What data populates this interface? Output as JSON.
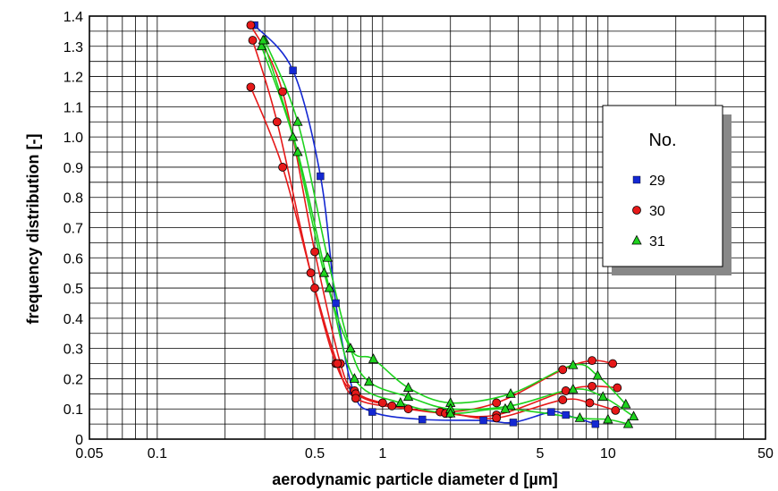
{
  "chart_data": {
    "type": "scatter",
    "xlabel": "aerodynamic particle diameter d [µm]",
    "ylabel": "frequency distribution [-]",
    "xscale": "log",
    "xlim": [
      0.05,
      50
    ],
    "ylim": [
      0,
      1.4
    ],
    "xticks": [
      {
        "v": 0.05,
        "label": "0.05"
      },
      {
        "v": 0.1,
        "label": "0.1"
      },
      {
        "v": 0.5,
        "label": "0.5"
      },
      {
        "v": 1,
        "label": "1"
      },
      {
        "v": 5,
        "label": "5"
      },
      {
        "v": 10,
        "label": "10"
      },
      {
        "v": 50,
        "label": "50"
      }
    ],
    "yticks": [
      {
        "v": 0,
        "label": "0"
      },
      {
        "v": 0.1,
        "label": "0.1"
      },
      {
        "v": 0.2,
        "label": "0.2"
      },
      {
        "v": 0.3,
        "label": "0.3"
      },
      {
        "v": 0.4,
        "label": "0.4"
      },
      {
        "v": 0.5,
        "label": "0.5"
      },
      {
        "v": 0.6,
        "label": "0.6"
      },
      {
        "v": 0.7,
        "label": "0.7"
      },
      {
        "v": 0.8,
        "label": "0.8"
      },
      {
        "v": 0.9,
        "label": "0.9"
      },
      {
        "v": 1.0,
        "label": "1.0"
      },
      {
        "v": 1.1,
        "label": "1.1"
      },
      {
        "v": 1.2,
        "label": "1.2"
      },
      {
        "v": 1.3,
        "label": "1.3"
      },
      {
        "v": 1.4,
        "label": "1.4"
      }
    ],
    "grid": true,
    "legend": {
      "title": "No.",
      "position": "right"
    },
    "series": [
      {
        "name": "29",
        "color": "#1428d2",
        "marker": "square",
        "curves": [
          [
            [
              0.27,
              1.37
            ],
            [
              0.4,
              1.22
            ],
            [
              0.53,
              0.87
            ],
            [
              0.62,
              0.45
            ],
            [
              0.74,
              0.16
            ],
            [
              0.9,
              0.09
            ],
            [
              1.5,
              0.065
            ],
            [
              2.8,
              0.062
            ],
            [
              3.8,
              0.055
            ],
            [
              5.6,
              0.09
            ],
            [
              6.5,
              0.08
            ],
            [
              8.8,
              0.05
            ]
          ]
        ]
      },
      {
        "name": "30",
        "color": "#e61919",
        "marker": "circle",
        "curves": [
          [
            [
              0.26,
              1.37
            ],
            [
              0.36,
              1.15
            ],
            [
              0.5,
              0.62
            ],
            [
              0.65,
              0.25
            ],
            [
              0.75,
              0.16
            ],
            [
              1.0,
              0.12
            ],
            [
              1.8,
              0.09
            ],
            [
              3.2,
              0.12
            ],
            [
              6.3,
              0.23
            ],
            [
              8.5,
              0.26
            ],
            [
              10.5,
              0.25
            ]
          ],
          [
            [
              0.265,
              1.32
            ],
            [
              0.34,
              1.05
            ],
            [
              0.48,
              0.55
            ],
            [
              0.62,
              0.25
            ],
            [
              0.76,
              0.15
            ],
            [
              1.1,
              0.11
            ],
            [
              1.9,
              0.085
            ],
            [
              3.2,
              0.08
            ],
            [
              6.5,
              0.16
            ],
            [
              8.5,
              0.175
            ],
            [
              11.0,
              0.17
            ]
          ],
          [
            [
              0.26,
              1.165
            ],
            [
              0.36,
              0.9
            ],
            [
              0.5,
              0.5
            ],
            [
              0.63,
              0.25
            ],
            [
              0.76,
              0.135
            ],
            [
              1.3,
              0.1
            ],
            [
              2.0,
              0.085
            ],
            [
              3.2,
              0.07
            ],
            [
              6.3,
              0.13
            ],
            [
              8.3,
              0.12
            ],
            [
              10.8,
              0.095
            ]
          ]
        ]
      },
      {
        "name": "31",
        "color": "#1ed21e",
        "marker": "triangle",
        "curves": [
          [
            [
              0.29,
              1.3
            ],
            [
              0.4,
              1.0
            ],
            [
              0.55,
              0.55
            ],
            [
              0.72,
              0.3
            ],
            [
              0.91,
              0.265
            ],
            [
              1.3,
              0.17
            ],
            [
              2.0,
              0.12
            ],
            [
              3.7,
              0.15
            ],
            [
              7.0,
              0.245
            ],
            [
              9.0,
              0.21
            ],
            [
              12.0,
              0.115
            ]
          ],
          [
            [
              0.3,
              1.32
            ],
            [
              0.42,
              1.05
            ],
            [
              0.57,
              0.6
            ],
            [
              0.72,
              0.3
            ],
            [
              0.87,
              0.19
            ],
            [
              1.3,
              0.14
            ],
            [
              2.0,
              0.1
            ],
            [
              3.7,
              0.11
            ],
            [
              7.0,
              0.165
            ],
            [
              9.5,
              0.14
            ],
            [
              13.0,
              0.075
            ]
          ],
          [
            [
              0.295,
              1.32
            ],
            [
              0.42,
              0.95
            ],
            [
              0.58,
              0.5
            ],
            [
              0.75,
              0.2
            ],
            [
              1.2,
              0.12
            ],
            [
              2.0,
              0.085
            ],
            [
              3.5,
              0.1
            ],
            [
              7.5,
              0.07
            ],
            [
              10.0,
              0.065
            ],
            [
              12.3,
              0.05
            ]
          ]
        ]
      }
    ]
  }
}
